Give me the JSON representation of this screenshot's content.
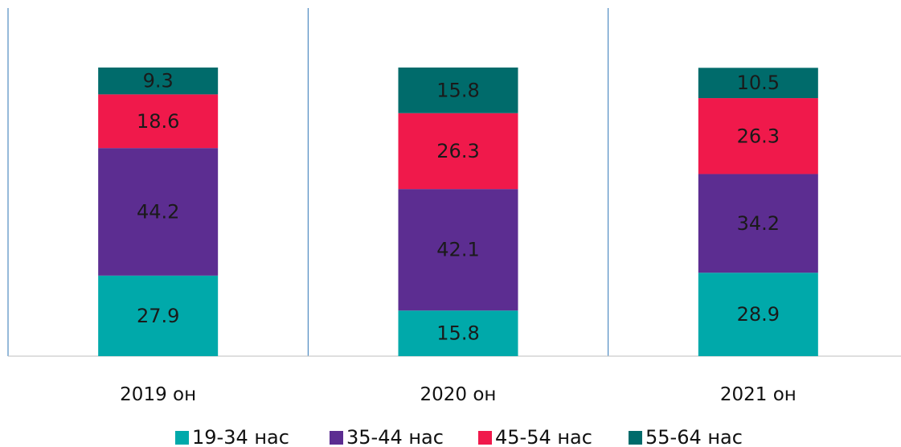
{
  "chart_data": {
    "type": "bar",
    "stacked": true,
    "categories": [
      "2019 он",
      "2020 он",
      "2021 он"
    ],
    "series": [
      {
        "name": "19-34 нас",
        "color": "#00A9AA",
        "values": [
          27.9,
          15.8,
          28.9
        ]
      },
      {
        "name": "35-44 нас",
        "color": "#5C2D91",
        "values": [
          44.2,
          42.1,
          34.2
        ]
      },
      {
        "name": "45-54 нас",
        "color": "#F0194B",
        "values": [
          18.6,
          26.3,
          26.3
        ]
      },
      {
        "name": "55-64 нас",
        "color": "#006B6B",
        "values": [
          9.3,
          15.8,
          10.5
        ]
      }
    ],
    "title": "",
    "xlabel": "",
    "ylabel": "",
    "ylim": [
      0,
      100
    ],
    "grid": false,
    "legend": "bottom",
    "category_separators_color": "#2E75B6",
    "axis_color": "#BFBFBF"
  }
}
